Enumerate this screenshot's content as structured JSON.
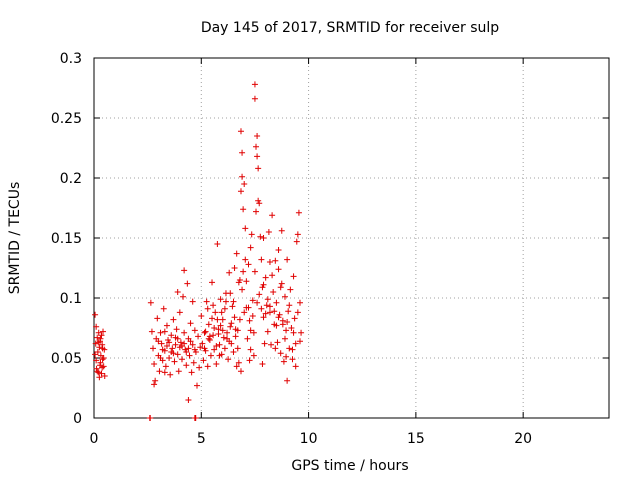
{
  "chart_data": {
    "type": "scatter",
    "title": "Day 145 of 2017, SRMTID for receiver sulp",
    "xlabel": "GPS time / hours",
    "ylabel": "SRMTID / TECUs",
    "xlim": [
      0,
      24
    ],
    "ylim": [
      0,
      0.3
    ],
    "xticks": [
      0,
      5,
      10,
      15,
      20
    ],
    "xtick_labels": [
      "0",
      "5",
      "10",
      "15",
      "20"
    ],
    "yticks": [
      0,
      0.05,
      0.1,
      0.15,
      0.2,
      0.25,
      0.3
    ],
    "ytick_labels": [
      "0",
      "0.05",
      "0.1",
      "0.15",
      "0.2",
      "0.25",
      "0.3"
    ],
    "grid": true,
    "marker": "plus",
    "color": "#e00000",
    "series": [
      {
        "name": "SRMTID",
        "points": [
          [
            0.05,
            0.086
          ],
          [
            0.08,
            0.062
          ],
          [
            0.1,
            0.048
          ],
          [
            0.12,
            0.041
          ],
          [
            0.15,
            0.067
          ],
          [
            0.18,
            0.055
          ],
          [
            0.2,
            0.038
          ],
          [
            0.22,
            0.071
          ],
          [
            0.25,
            0.059
          ],
          [
            0.28,
            0.044
          ],
          [
            0.3,
            0.066
          ],
          [
            0.32,
            0.052
          ],
          [
            0.35,
            0.037
          ],
          [
            0.38,
            0.061
          ],
          [
            0.4,
            0.049
          ],
          [
            0.42,
            0.072
          ],
          [
            0.45,
            0.043
          ],
          [
            0.48,
            0.057
          ],
          [
            0.5,
            0.035
          ],
          [
            0.1,
            0.076
          ],
          [
            0.2,
            0.063
          ],
          [
            0.3,
            0.046
          ],
          [
            0.4,
            0.058
          ],
          [
            0.15,
            0.039
          ],
          [
            0.35,
            0.069
          ],
          [
            0.45,
            0.05
          ],
          [
            0.25,
            0.034
          ],
          [
            0.05,
            0.053
          ],
          [
            0.38,
            0.042
          ],
          [
            0.28,
            0.064
          ],
          [
            2.65,
            0.096
          ],
          [
            2.7,
            0.072
          ],
          [
            2.75,
            0.058
          ],
          [
            2.8,
            0.045
          ],
          [
            2.85,
            0.031
          ],
          [
            2.9,
            0.066
          ],
          [
            2.95,
            0.083
          ],
          [
            3.0,
            0.052
          ],
          [
            3.05,
            0.039
          ],
          [
            3.1,
            0.071
          ],
          [
            3.15,
            0.062
          ],
          [
            3.2,
            0.048
          ],
          [
            3.25,
            0.091
          ],
          [
            3.3,
            0.056
          ],
          [
            3.35,
            0.043
          ],
          [
            3.4,
            0.077
          ],
          [
            3.45,
            0.065
          ],
          [
            3.5,
            0.05
          ],
          [
            3.55,
            0.036
          ],
          [
            3.6,
            0.069
          ],
          [
            3.65,
            0.058
          ],
          [
            3.7,
            0.082
          ],
          [
            3.75,
            0.047
          ],
          [
            3.8,
            0.061
          ],
          [
            3.85,
            0.074
          ],
          [
            3.9,
            0.053
          ],
          [
            3.95,
            0.039
          ],
          [
            4.0,
            0.088
          ],
          [
            4.05,
            0.063
          ],
          [
            4.1,
            0.049
          ],
          [
            4.15,
            0.101
          ],
          [
            4.2,
            0.071
          ],
          [
            4.25,
            0.057
          ],
          [
            4.3,
            0.044
          ],
          [
            4.35,
            0.112
          ],
          [
            4.4,
            0.066
          ],
          [
            4.45,
            0.052
          ],
          [
            4.5,
            0.079
          ],
          [
            4.55,
            0.038
          ],
          [
            4.6,
            0.061
          ],
          [
            4.65,
            0.046
          ],
          [
            4.7,
            0.073
          ],
          [
            4.75,
            0.055
          ],
          [
            4.8,
            0.027
          ],
          [
            4.85,
            0.068
          ],
          [
            4.9,
            0.042
          ],
          [
            4.95,
            0.059
          ],
          [
            3.0,
            0.064
          ],
          [
            3.2,
            0.057
          ],
          [
            3.4,
            0.06
          ],
          [
            3.6,
            0.055
          ],
          [
            3.8,
            0.067
          ],
          [
            4.0,
            0.059
          ],
          [
            4.2,
            0.062
          ],
          [
            4.4,
            0.058
          ],
          [
            3.1,
            0.05
          ],
          [
            3.3,
            0.072
          ],
          [
            3.5,
            0.063
          ],
          [
            3.7,
            0.054
          ],
          [
            3.9,
            0.066
          ],
          [
            4.1,
            0.06
          ],
          [
            4.3,
            0.055
          ],
          [
            4.5,
            0.064
          ],
          [
            4.7,
            0.057
          ],
          [
            4.2,
            0.123
          ],
          [
            4.4,
            0.015
          ],
          [
            2.8,
            0.028
          ],
          [
            3.9,
            0.105
          ],
          [
            4.6,
            0.097
          ],
          [
            3.3,
            0.038
          ],
          [
            5.0,
            0.085
          ],
          [
            5.05,
            0.062
          ],
          [
            5.1,
            0.048
          ],
          [
            5.15,
            0.071
          ],
          [
            5.2,
            0.056
          ],
          [
            5.25,
            0.097
          ],
          [
            5.3,
            0.043
          ],
          [
            5.35,
            0.078
          ],
          [
            5.4,
            0.065
          ],
          [
            5.45,
            0.052
          ],
          [
            5.5,
            0.113
          ],
          [
            5.55,
            0.069
          ],
          [
            5.6,
            0.057
          ],
          [
            5.65,
            0.088
          ],
          [
            5.7,
            0.045
          ],
          [
            5.75,
            0.145
          ],
          [
            5.8,
            0.074
          ],
          [
            5.85,
            0.061
          ],
          [
            5.9,
            0.099
          ],
          [
            5.95,
            0.053
          ],
          [
            6.0,
            0.082
          ],
          [
            6.05,
            0.067
          ],
          [
            6.1,
            0.058
          ],
          [
            6.15,
            0.104
          ],
          [
            6.2,
            0.071
          ],
          [
            6.25,
            0.049
          ],
          [
            6.3,
            0.121
          ],
          [
            6.35,
            0.076
          ],
          [
            6.4,
            0.062
          ],
          [
            6.45,
            0.093
          ],
          [
            6.5,
            0.055
          ],
          [
            6.55,
            0.084
          ],
          [
            6.6,
            0.068
          ],
          [
            6.65,
            0.137
          ],
          [
            6.7,
            0.073
          ],
          [
            6.75,
            0.046
          ],
          [
            6.8,
            0.115
          ],
          [
            6.85,
            0.189
          ],
          [
            6.9,
            0.201
          ],
          [
            6.95,
            0.174
          ],
          [
            6.85,
            0.239
          ],
          [
            6.9,
            0.221
          ],
          [
            7.0,
            0.195
          ],
          [
            7.05,
            0.158
          ],
          [
            7.1,
            0.092
          ],
          [
            7.15,
            0.066
          ],
          [
            7.2,
            0.128
          ],
          [
            7.25,
            0.081
          ],
          [
            7.3,
            0.057
          ],
          [
            7.35,
            0.153
          ],
          [
            7.4,
            0.098
          ],
          [
            7.45,
            0.071
          ],
          [
            7.5,
            0.278
          ],
          [
            7.5,
            0.266
          ],
          [
            7.55,
            0.226
          ],
          [
            7.6,
            0.235
          ],
          [
            7.6,
            0.218
          ],
          [
            7.65,
            0.208
          ],
          [
            7.7,
            0.179
          ],
          [
            7.75,
            0.151
          ],
          [
            7.8,
            0.132
          ],
          [
            7.85,
            0.109
          ],
          [
            7.9,
            0.084
          ],
          [
            7.95,
            0.062
          ],
          [
            8.0,
            0.117
          ],
          [
            8.05,
            0.094
          ],
          [
            8.1,
            0.072
          ],
          [
            8.15,
            0.155
          ],
          [
            8.2,
            0.088
          ],
          [
            8.25,
            0.061
          ],
          [
            8.3,
            0.169
          ],
          [
            8.35,
            0.105
          ],
          [
            8.4,
            0.078
          ],
          [
            8.45,
            0.131
          ],
          [
            8.5,
            0.096
          ],
          [
            8.55,
            0.063
          ],
          [
            8.6,
            0.124
          ],
          [
            8.65,
            0.086
          ],
          [
            8.7,
            0.054
          ],
          [
            8.75,
            0.112
          ],
          [
            8.8,
            0.081
          ],
          [
            8.85,
            0.047
          ],
          [
            8.9,
            0.101
          ],
          [
            8.95,
            0.073
          ],
          [
            9.0,
            0.132
          ],
          [
            9.05,
            0.089
          ],
          [
            9.1,
            0.058
          ],
          [
            9.15,
            0.107
          ],
          [
            9.2,
            0.075
          ],
          [
            9.25,
            0.049
          ],
          [
            9.3,
            0.118
          ],
          [
            9.35,
            0.083
          ],
          [
            9.4,
            0.062
          ],
          [
            9.45,
            0.147
          ],
          [
            9.5,
            0.153
          ],
          [
            9.55,
            0.171
          ],
          [
            9.6,
            0.096
          ],
          [
            9.65,
            0.071
          ],
          [
            9.4,
            0.043
          ],
          [
            9.0,
            0.031
          ],
          [
            5.2,
            0.072
          ],
          [
            5.4,
            0.068
          ],
          [
            5.6,
            0.075
          ],
          [
            5.8,
            0.07
          ],
          [
            6.0,
            0.073
          ],
          [
            6.2,
            0.066
          ],
          [
            6.4,
            0.079
          ],
          [
            6.6,
            0.074
          ],
          [
            6.8,
            0.082
          ],
          [
            7.0,
            0.088
          ],
          [
            7.2,
            0.092
          ],
          [
            7.4,
            0.085
          ],
          [
            7.6,
            0.096
          ],
          [
            7.8,
            0.091
          ],
          [
            8.0,
            0.087
          ],
          [
            8.2,
            0.093
          ],
          [
            8.4,
            0.089
          ],
          [
            8.6,
            0.084
          ],
          [
            8.8,
            0.078
          ],
          [
            9.0,
            0.08
          ],
          [
            5.3,
            0.091
          ],
          [
            5.5,
            0.083
          ],
          [
            5.7,
            0.06
          ],
          [
            5.9,
            0.077
          ],
          [
            6.1,
            0.091
          ],
          [
            6.3,
            0.064
          ],
          [
            6.5,
            0.097
          ],
          [
            6.7,
            0.058
          ],
          [
            6.9,
            0.107
          ],
          [
            7.1,
            0.114
          ],
          [
            7.3,
            0.073
          ],
          [
            7.5,
            0.122
          ],
          [
            7.7,
            0.103
          ],
          [
            7.9,
            0.111
          ],
          [
            8.1,
            0.099
          ],
          [
            8.3,
            0.119
          ],
          [
            8.5,
            0.077
          ],
          [
            8.7,
            0.109
          ],
          [
            8.9,
            0.066
          ],
          [
            9.1,
            0.094
          ],
          [
            9.3,
            0.071
          ],
          [
            9.5,
            0.088
          ],
          [
            9.6,
            0.064
          ],
          [
            7.65,
            0.181
          ],
          [
            7.55,
            0.172
          ],
          [
            7.9,
            0.15
          ],
          [
            8.2,
            0.13
          ],
          [
            8.6,
            0.14
          ],
          [
            8.75,
            0.156
          ],
          [
            7.3,
            0.142
          ],
          [
            7.05,
            0.132
          ],
          [
            6.95,
            0.122
          ],
          [
            6.75,
            0.113
          ],
          [
            6.55,
            0.125
          ],
          [
            6.35,
            0.104
          ],
          [
            6.15,
            0.097
          ],
          [
            5.95,
            0.088
          ],
          [
            5.75,
            0.082
          ],
          [
            5.55,
            0.094
          ],
          [
            5.35,
            0.066
          ],
          [
            7.25,
            0.048
          ],
          [
            7.45,
            0.052
          ],
          [
            7.85,
            0.045
          ],
          [
            8.45,
            0.058
          ],
          [
            8.95,
            0.051
          ],
          [
            9.25,
            0.057
          ],
          [
            6.65,
            0.043
          ],
          [
            6.85,
            0.039
          ],
          [
            5.15,
            0.058
          ],
          [
            5.85,
            0.052
          ]
        ]
      }
    ],
    "zero_points": [
      [
        2.6,
        0.0
      ],
      [
        2.62,
        0.0
      ],
      [
        4.7,
        0.0
      ],
      [
        4.72,
        0.0
      ],
      [
        4.74,
        0.0
      ]
    ]
  }
}
